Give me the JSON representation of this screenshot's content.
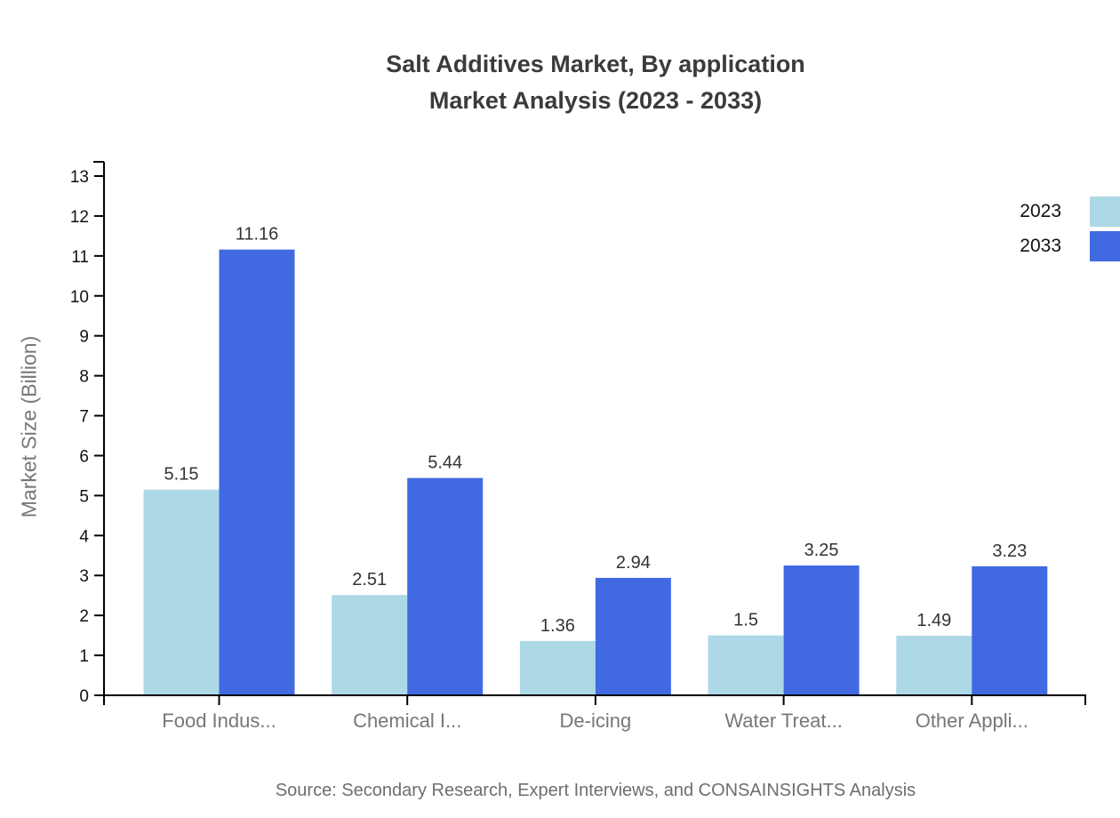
{
  "title": {
    "line1": "Salt Additives Market, By application",
    "line2": "Market Analysis (2023 - 2033)"
  },
  "chart_data": {
    "type": "bar",
    "categories": [
      "Food Indus...",
      "Chemical I...",
      "De-icing",
      "Water Treat...",
      "Other Appli..."
    ],
    "series": [
      {
        "name": "2023",
        "color": "#ADD8E6",
        "values": [
          5.15,
          2.51,
          1.36,
          1.5,
          1.49
        ]
      },
      {
        "name": "2033",
        "color": "#4169E1",
        "values": [
          11.16,
          5.44,
          2.94,
          3.25,
          3.23
        ]
      }
    ],
    "title": "Salt Additives Market, By application Market Analysis (2023 - 2033)",
    "xlabel": "",
    "ylabel": "Market Size (Billion)",
    "ylim": [
      0,
      13
    ],
    "yticks": [
      0,
      1,
      2,
      3,
      4,
      5,
      6,
      7,
      8,
      9,
      10,
      11,
      12,
      13
    ],
    "grid": false,
    "legend_position": "top-right",
    "value_labels": true
  },
  "legend": {
    "items": [
      {
        "label": "2023",
        "color": "#ADD8E6"
      },
      {
        "label": "2033",
        "color": "#4169E1"
      }
    ]
  },
  "source": {
    "text": "Source: Secondary Research, Expert Interviews, and CONSAINSIGHTS Analysis"
  },
  "colors": {
    "series_2023": "#ADD8E6",
    "series_2033": "#4169E1",
    "title_text": "#3b3b3b",
    "axis_line": "#000000",
    "tick_label": "#111111",
    "value_label": "#333333",
    "category_label": "#777777",
    "axis_title": "#777777",
    "source_text": "#6e6e6e"
  }
}
